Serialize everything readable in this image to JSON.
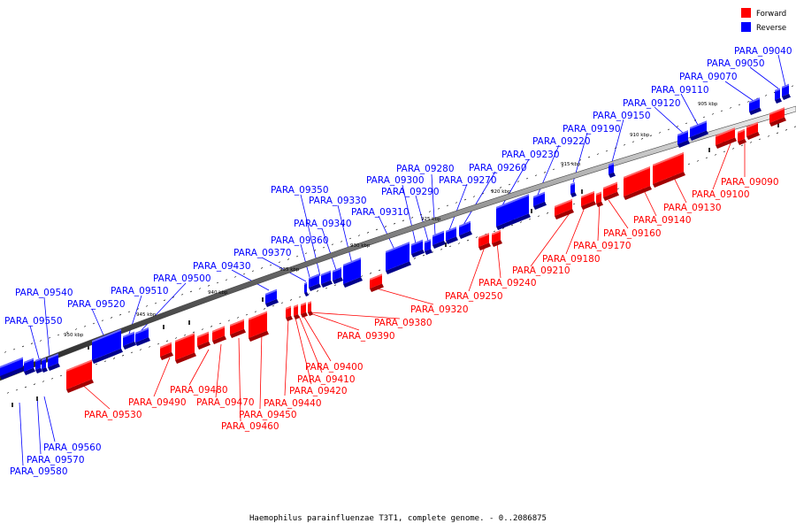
{
  "legend": [
    {
      "label": "Forward",
      "color": "#ff0000"
    },
    {
      "label": "Reverse",
      "color": "#0000ff"
    }
  ],
  "caption": "Haemophilus parainfluenzae T3T1, complete genome. - 0..2086875",
  "colors": {
    "forward": "#ff0000",
    "reverse": "#0000ff",
    "backbone": "#555555"
  },
  "scale_labels": [
    "905 kbp",
    "910 kbp",
    "915 kbp",
    "920 kbp",
    "925 kbp",
    "930 kbp",
    "935 kbp",
    "940 kbp",
    "945 kbp",
    "950 kbp"
  ],
  "reverse_genes": [
    "PARA_09040",
    "PARA_09050",
    "PARA_09070",
    "PARA_09110",
    "PARA_09120",
    "PARA_09150",
    "PARA_09190",
    "PARA_09220",
    "PARA_09230",
    "PARA_09260",
    "PARA_09270",
    "PARA_09280",
    "PARA_09290",
    "PARA_09300",
    "PARA_09310",
    "PARA_09330",
    "PARA_09340",
    "PARA_09350",
    "PARA_09360",
    "PARA_09370",
    "PARA_09430",
    "PARA_09500",
    "PARA_09510",
    "PARA_09520",
    "PARA_09540",
    "PARA_09550",
    "PARA_09560",
    "PARA_09570",
    "PARA_09580"
  ],
  "forward_genes": [
    "PARA_09090",
    "PARA_09100",
    "PARA_09130",
    "PARA_09140",
    "PARA_09160",
    "PARA_09170",
    "PARA_09180",
    "PARA_09210",
    "PARA_09240",
    "PARA_09250",
    "PARA_09320",
    "PARA_09380",
    "PARA_09390",
    "PARA_09400",
    "PARA_09410",
    "PARA_09420",
    "PARA_09440",
    "PARA_09450",
    "PARA_09460",
    "PARA_09470",
    "PARA_09480",
    "PARA_09490",
    "PARA_09530"
  ]
}
